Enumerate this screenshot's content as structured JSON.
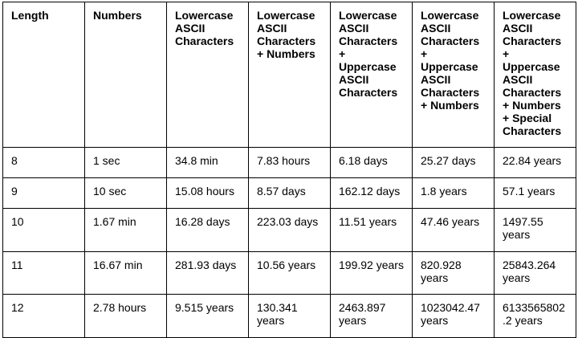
{
  "table": {
    "headers": [
      "Length",
      "Numbers",
      "Lowercase ASCII Characters",
      "Lowercase ASCII Characters + Numbers",
      "Lowercase ASCII Characters + Uppercase ASCII Characters",
      "Lowercase ASCII Characters + Uppercase ASCII Characters + Numbers",
      "Lowercase ASCII Characters + Uppercase ASCII Characters + Numbers + Special Characters"
    ],
    "rows": [
      [
        "8",
        "1 sec",
        "34.8 min",
        "7.83 hours",
        "6.18 days",
        "25.27 days",
        "22.84 years"
      ],
      [
        "9",
        "10 sec",
        "15.08 hours",
        "8.57 days",
        "162.12 days",
        "1.8 years",
        "57.1 years"
      ],
      [
        "10",
        "1.67 min",
        "16.28 days",
        "223.03 days",
        "11.51 years",
        "47.46 years",
        "1497.55 years"
      ],
      [
        "11",
        "16.67 min",
        "281.93 days",
        "10.56 years",
        "199.92 years",
        "820.928 years",
        "25843.264 years"
      ],
      [
        "12",
        "2.78 hours",
        "9.515 years",
        "130.341 years",
        "2463.897 years",
        "1023042.47 years",
        "6133565802.2 years"
      ]
    ]
  }
}
